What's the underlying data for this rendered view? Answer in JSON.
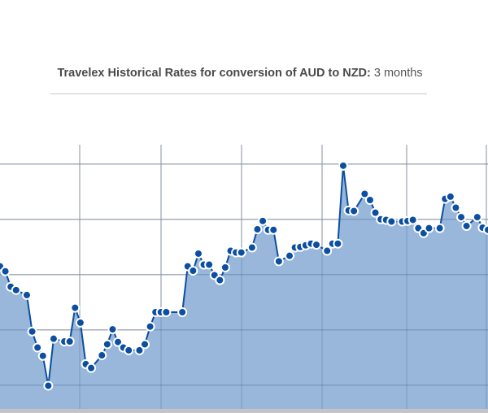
{
  "header": {
    "title_bold": "Travelex Historical Rates for conversion of AUD to NZD:",
    "period": "3 months"
  },
  "chart_data": {
    "type": "area",
    "title": "Travelex Historical Rates for conversion of AUD to NZD: 3 months",
    "xlabel": "",
    "ylabel": "",
    "note": "No axis tick labels visible; y values are in relative gridline units (gridlines at 0,1,2,3,4)",
    "xlim": [
      0,
      91
    ],
    "ylim": [
      -0.43,
      4.35
    ],
    "grid": true,
    "colors": {
      "line": "#0b4ea2",
      "fill": "#98b7da",
      "grid": "#d0d0d0"
    },
    "x": [
      0,
      1,
      2,
      3,
      5,
      6,
      7,
      8,
      9,
      10,
      12,
      13,
      14,
      15,
      16,
      17,
      19,
      20,
      21,
      22,
      23,
      24,
      26,
      27,
      28,
      29,
      30,
      31,
      34,
      35,
      36,
      37,
      38,
      39,
      40,
      41,
      42,
      43,
      44,
      45,
      47,
      48,
      49,
      50,
      51,
      52,
      54,
      55,
      56,
      57,
      58,
      59,
      61,
      62,
      63,
      64,
      65,
      66,
      68,
      69,
      70,
      71,
      72,
      73,
      75,
      76,
      77,
      78,
      79,
      80,
      82,
      83,
      84,
      85,
      86,
      87,
      89,
      90,
      91
    ],
    "values": [
      2.15,
      2.06,
      1.78,
      1.72,
      1.63,
      0.97,
      0.68,
      0.53,
      -0.01,
      0.84,
      0.79,
      0.79,
      1.4,
      1.13,
      0.38,
      0.31,
      0.54,
      0.74,
      1.01,
      0.78,
      0.68,
      0.63,
      0.63,
      0.74,
      1.06,
      1.32,
      1.32,
      1.32,
      1.32,
      2.15,
      2.07,
      2.38,
      2.18,
      2.18,
      1.99,
      1.9,
      2.13,
      2.43,
      2.4,
      2.4,
      2.49,
      2.82,
      2.97,
      2.81,
      2.81,
      2.24,
      2.34,
      2.49,
      2.5,
      2.53,
      2.56,
      2.54,
      2.43,
      2.56,
      2.56,
      3.97,
      3.16,
      3.15,
      3.46,
      3.35,
      3.12,
      3.0,
      2.99,
      2.96,
      2.96,
      2.97,
      2.99,
      2.84,
      2.75,
      2.84,
      2.84,
      3.37,
      3.41,
      3.21,
      3.04,
      2.88,
      3.04,
      2.85,
      2.81
    ]
  }
}
